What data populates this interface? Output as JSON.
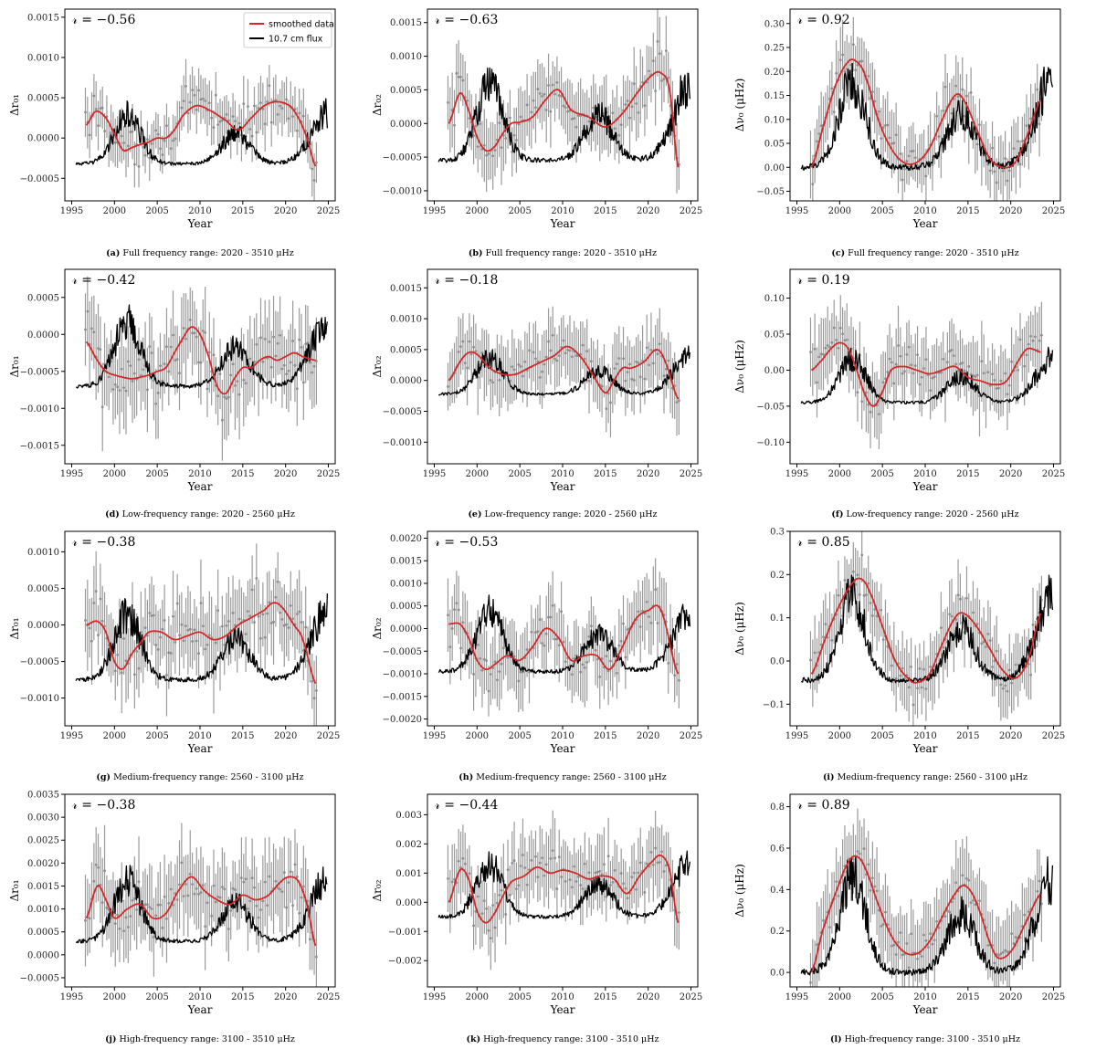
{
  "figure": {
    "xlabel": "Year",
    "x_ticks": [
      1995,
      2000,
      2005,
      2010,
      2015,
      2020,
      2025
    ],
    "xlim": [
      1994.2,
      2025.8
    ],
    "colors": {
      "smoothed": "#d62728",
      "flux": "#000000",
      "errorbars": "#9a9a9a",
      "points": "#8c8c8c"
    },
    "legend": {
      "smoothed": "smoothed data",
      "flux": "10.7 cm flux",
      "placement": "top-right of panel a"
    }
  },
  "chart_data": [
    {
      "id": "a",
      "type": "line",
      "tag": "(a)",
      "caption": "Full frequency range: 2020 - 3510 μHz",
      "r_text": "𝓇 = −0.56",
      "ylabel": "Δr₀₁",
      "ylim": [
        -0.00078,
        0.0016
      ],
      "y_ticks": [
        -0.0005,
        0.0,
        0.0005,
        0.001,
        0.0015
      ],
      "y_tick_labels": [
        "−0.0005",
        "0.0000",
        "0.0005",
        "0.0010",
        "0.0015"
      ],
      "smooth_x": [
        1996.7,
        1997.8,
        1999,
        2000,
        2001,
        2002,
        2003,
        2004,
        2005,
        2006,
        2007,
        2008,
        2009.5,
        2011,
        2013,
        2014.5,
        2016,
        2017.5,
        2019,
        2020.5,
        2021.5,
        2022.5,
        2023.5
      ],
      "smooth_y": [
        0.00016,
        0.00033,
        0.00025,
        5e-05,
        -0.00015,
        -0.00012,
        -8e-05,
        -5e-05,
        0.0,
        0.0,
        0.0001,
        0.00028,
        0.0004,
        0.00035,
        0.00022,
        0.0001,
        0.00025,
        0.0004,
        0.00045,
        0.0004,
        0.00025,
        0.0,
        -0.00035
      ],
      "flux_low": -0.00032,
      "flux_amp": 0.0006,
      "err": 0.00028,
      "scatter": 0.00018
    },
    {
      "id": "b",
      "type": "line",
      "tag": "(b)",
      "caption": "Full frequency range: 2020 - 3510 μHz",
      "r_text": "𝓇 = −0.63",
      "ylabel": "Δr₀₂",
      "ylim": [
        -0.00115,
        0.0017
      ],
      "y_ticks": [
        -0.001,
        -0.0005,
        0.0,
        0.0005,
        0.001,
        0.0015
      ],
      "y_tick_labels": [
        "−0.0010",
        "−0.0005",
        "0.0000",
        "0.0005",
        "0.0010",
        "0.0015"
      ],
      "smooth_x": [
        1996.7,
        1998,
        1999,
        2000,
        2001,
        2002,
        2003,
        2004,
        2005,
        2006.5,
        2008,
        2009.5,
        2011,
        2013,
        2015,
        2017,
        2019,
        2020.5,
        2021.5,
        2022.5,
        2023.5
      ],
      "smooth_y": [
        0.0,
        0.00045,
        0.0002,
        -0.0002,
        -0.0004,
        -0.00035,
        -0.00015,
        0.0,
        2e-05,
        0.0001,
        0.00035,
        0.0005,
        0.0002,
        0.0001,
        -5e-05,
        0.00015,
        0.0005,
        0.00072,
        0.00075,
        0.0005,
        -0.00065
      ],
      "flux_low": -0.00055,
      "flux_amp": 0.0011,
      "err": 0.00045,
      "scatter": 0.00025
    },
    {
      "id": "c",
      "type": "line",
      "tag": "(c)",
      "caption": "Full frequency range: 2020 - 3510 μHz",
      "r_text": "𝓇 = 0.92",
      "ylabel": "Δν₀ (μHz)",
      "ylim": [
        -0.07,
        0.33
      ],
      "y_ticks": [
        -0.05,
        0.0,
        0.05,
        0.1,
        0.15,
        0.2,
        0.25,
        0.3
      ],
      "y_tick_labels": [
        "−0.05",
        "0.00",
        "0.05",
        "0.10",
        "0.15",
        "0.20",
        "0.25",
        "0.30"
      ],
      "smooth_x": [
        1996.7,
        1998,
        1999.5,
        2001,
        2002,
        2003,
        2004.5,
        2006,
        2007.5,
        2009,
        2010.5,
        2012,
        2013.5,
        2014.5,
        2016,
        2017.5,
        2019,
        2020.5,
        2022,
        2023.5
      ],
      "smooth_y": [
        0.0,
        0.08,
        0.17,
        0.22,
        0.22,
        0.19,
        0.1,
        0.04,
        0.01,
        0.01,
        0.04,
        0.1,
        0.15,
        0.14,
        0.08,
        0.02,
        0.0,
        0.01,
        0.07,
        0.14
      ],
      "flux_low": 0.0,
      "flux_amp": 0.18,
      "err": 0.06,
      "scatter": 0.03
    },
    {
      "id": "d",
      "type": "line",
      "tag": "(d)",
      "caption": "Low-frequency range: 2020 - 2560 μHz",
      "r_text": "𝓇 = −0.42",
      "ylabel": "Δr₀₁",
      "ylim": [
        -0.00175,
        0.00088
      ],
      "y_ticks": [
        -0.0015,
        -0.001,
        -0.0005,
        0.0,
        0.0005
      ],
      "y_tick_labels": [
        "−0.0015",
        "−0.0010",
        "−0.0005",
        "0.0000",
        "0.0005"
      ],
      "smooth_x": [
        1996.7,
        1998,
        1999,
        2000,
        2001,
        2002,
        2003,
        2004,
        2005,
        2006,
        2007,
        2008,
        2009,
        2010,
        2011,
        2012,
        2013,
        2014,
        2015,
        2016,
        2017,
        2018,
        2019,
        2020,
        2021,
        2022,
        2023.5
      ],
      "smooth_y": [
        -0.0001,
        -0.00035,
        -0.0005,
        -0.00055,
        -0.00058,
        -0.0006,
        -0.00058,
        -0.00055,
        -0.0005,
        -0.00045,
        -0.00025,
        -5e-05,
        0.0001,
        0.0,
        -0.0003,
        -0.0007,
        -0.0008,
        -0.0006,
        -0.00045,
        -0.00045,
        -0.00035,
        -0.0003,
        -0.00035,
        -0.0003,
        -0.00025,
        -0.0003,
        -0.00035
      ],
      "flux_low": -0.0007,
      "flux_amp": 0.00085,
      "err": 0.0005,
      "scatter": 0.0003
    },
    {
      "id": "e",
      "type": "line",
      "tag": "(e)",
      "caption": "Low-frequency range: 2020 - 2560 μHz",
      "r_text": "𝓇 = −0.18",
      "ylabel": "Δr₀₂",
      "ylim": [
        -0.00135,
        0.0018
      ],
      "y_ticks": [
        -0.001,
        -0.0005,
        0.0,
        0.0005,
        0.001,
        0.0015
      ],
      "y_tick_labels": [
        "−0.0010",
        "−0.0005",
        "0.0000",
        "0.0005",
        "0.0010",
        "0.0015"
      ],
      "smooth_x": [
        1996.7,
        1998,
        1999,
        2000,
        2001.5,
        2003,
        2004.5,
        2006,
        2007.5,
        2009,
        2010.5,
        2012,
        2013.5,
        2015,
        2016,
        2017,
        2018,
        2019.5,
        2021,
        2022,
        2023.5
      ],
      "smooth_y": [
        0.0,
        0.0003,
        0.00045,
        0.00042,
        0.0002,
        0.0001,
        0.0001,
        0.0002,
        0.0003,
        0.0004,
        0.00055,
        0.0004,
        0.0001,
        -0.0002,
        0.0,
        0.0002,
        0.0002,
        0.0003,
        0.0005,
        0.0003,
        -0.0003
      ],
      "flux_low": -0.00022,
      "flux_amp": 0.0006,
      "err": 0.0005,
      "scatter": 0.0002
    },
    {
      "id": "f",
      "type": "line",
      "tag": "(f)",
      "caption": "Low-frequency range: 2020 - 2560 μHz",
      "r_text": "𝓇 = 0.19",
      "ylabel": "Δν₀ (μHz)",
      "ylim": [
        -0.13,
        0.14
      ],
      "y_ticks": [
        -0.1,
        -0.05,
        0.0,
        0.05,
        0.1
      ],
      "y_tick_labels": [
        "−0.10",
        "−0.05",
        "0.00",
        "0.05",
        "0.10"
      ],
      "smooth_x": [
        1996.7,
        1998,
        1999,
        2000,
        2001,
        2002,
        2003,
        2004,
        2005,
        2006,
        2007.5,
        2009,
        2010.5,
        2012,
        2013.5,
        2015,
        2016.5,
        2018,
        2019.5,
        2021,
        2022,
        2023.5
      ],
      "smooth_y": [
        0.0,
        0.015,
        0.03,
        0.038,
        0.03,
        0.0,
        -0.035,
        -0.05,
        -0.03,
        0.0,
        0.005,
        0.0,
        -0.005,
        0.0,
        0.005,
        -0.01,
        -0.015,
        -0.02,
        -0.015,
        0.015,
        0.03,
        0.025
      ],
      "flux_low": -0.045,
      "flux_amp": 0.06,
      "err": 0.045,
      "scatter": 0.02
    },
    {
      "id": "g",
      "type": "line",
      "tag": "(g)",
      "caption": "Medium-frequency range: 2560 - 3100 μHz",
      "r_text": "𝓇 = −0.38",
      "ylabel": "Δr₀₁",
      "ylim": [
        -0.00138,
        0.00128
      ],
      "y_ticks": [
        -0.001,
        -0.0005,
        0.0,
        0.0005,
        0.001
      ],
      "y_tick_labels": [
        "−0.0010",
        "−0.0005",
        "0.0000",
        "0.0005",
        "0.0010"
      ],
      "smooth_x": [
        1996.7,
        1998,
        1999,
        2000,
        2001,
        2002,
        2003,
        2004,
        2005.5,
        2007,
        2008.5,
        2010,
        2011.5,
        2013,
        2014.5,
        2016,
        2017.5,
        2018.5,
        2019.5,
        2021,
        2022,
        2023.5
      ],
      "smooth_y": [
        0.0,
        5e-05,
        -0.0001,
        -0.0005,
        -0.0006,
        -0.0004,
        -0.00025,
        -0.0001,
        -0.0001,
        -0.0002,
        -0.00015,
        -0.0001,
        -0.0002,
        -0.00015,
        0.0,
        0.0001,
        0.0002,
        0.0003,
        0.00025,
        0.0,
        -0.0002,
        -0.0008
      ],
      "flux_low": -0.00075,
      "flux_amp": 0.0009,
      "err": 0.0005,
      "scatter": 0.0003
    },
    {
      "id": "h",
      "type": "line",
      "tag": "(h)",
      "caption": "Medium-frequency range: 2560 - 3100 μHz",
      "r_text": "𝓇 = −0.53",
      "ylabel": "Δr₀₂",
      "ylim": [
        -0.00215,
        0.00215
      ],
      "y_ticks": [
        -0.002,
        -0.0015,
        -0.001,
        -0.0005,
        0.0,
        0.0005,
        0.001,
        0.0015,
        0.002
      ],
      "y_tick_labels": [
        "−0.0020",
        "−0.0015",
        "−0.0010",
        "−0.0005",
        "0.0000",
        "0.0005",
        "0.0010",
        "0.0015",
        "0.0020"
      ],
      "smooth_x": [
        1996.7,
        1998,
        1999,
        2000,
        2001,
        2002,
        2003.5,
        2005,
        2006.5,
        2008,
        2009.5,
        2011,
        2012.5,
        2014,
        2015.5,
        2017,
        2018.5,
        2020,
        2021.5,
        2023.5
      ],
      "smooth_y": [
        0.0001,
        0.0001,
        -0.0002,
        -0.0007,
        -0.0009,
        -0.0008,
        -0.0006,
        -0.0007,
        -0.0004,
        0.0,
        -0.0002,
        -0.0007,
        -0.0006,
        -0.0006,
        -0.0009,
        -0.0004,
        0.0002,
        0.0004,
        0.0004,
        -0.001
      ],
      "flux_low": -0.00095,
      "flux_amp": 0.0013,
      "err": 0.0007,
      "scatter": 0.00035
    },
    {
      "id": "i",
      "type": "line",
      "tag": "(i)",
      "caption": "Medium-frequency range: 2560 - 3100 μHz",
      "r_text": "𝓇 = 0.85",
      "ylabel": "Δν₀ (μHz)",
      "ylim": [
        -0.15,
        0.3
      ],
      "y_ticks": [
        -0.1,
        0.0,
        0.1,
        0.2,
        0.3
      ],
      "y_tick_labels": [
        "−0.1",
        "0.0",
        "0.1",
        "0.2",
        "0.3"
      ],
      "smooth_x": [
        1996.7,
        1998.5,
        2000,
        2001.5,
        2002.5,
        2003.5,
        2005,
        2006.5,
        2008,
        2009,
        2010.5,
        2012,
        2013.5,
        2014.5,
        2016,
        2017.5,
        2019,
        2020.5,
        2022,
        2023.5
      ],
      "smooth_y": [
        -0.03,
        0.06,
        0.13,
        0.18,
        0.19,
        0.16,
        0.08,
        0.0,
        -0.04,
        -0.05,
        -0.03,
        0.04,
        0.1,
        0.11,
        0.08,
        0.03,
        -0.02,
        -0.04,
        0.0,
        0.11
      ],
      "flux_low": -0.045,
      "flux_amp": 0.19,
      "err": 0.07,
      "scatter": 0.035
    },
    {
      "id": "j",
      "type": "line",
      "tag": "(j)",
      "caption": "High-frequency range: 3100 - 3510 μHz",
      "r_text": "𝓇 = −0.38",
      "ylabel": "Δr₀₁",
      "ylim": [
        -0.0007,
        0.0035
      ],
      "y_ticks": [
        -0.0005,
        0.0,
        0.0005,
        0.001,
        0.0015,
        0.002,
        0.0025,
        0.003,
        0.0035
      ],
      "y_tick_labels": [
        "−0.0005",
        "0.0000",
        "0.0005",
        "0.0010",
        "0.0015",
        "0.0020",
        "0.0025",
        "0.0030",
        "0.0035"
      ],
      "smooth_x": [
        1996.7,
        1998,
        1999,
        2000,
        2001.5,
        2003,
        2004.5,
        2006,
        2007.5,
        2009,
        2010.5,
        2012,
        2013.5,
        2015,
        2016.5,
        2018,
        2019.5,
        2020.5,
        2021.5,
        2022.5,
        2023.5
      ],
      "smooth_y": [
        0.0008,
        0.0015,
        0.0012,
        0.0008,
        0.001,
        0.0011,
        0.0008,
        0.0009,
        0.0014,
        0.0017,
        0.0014,
        0.0012,
        0.0011,
        0.0013,
        0.0012,
        0.0013,
        0.0016,
        0.0017,
        0.0016,
        0.0011,
        0.0002
      ],
      "flux_low": 0.0003,
      "flux_amp": 0.0013,
      "err": 0.0008,
      "scatter": 0.0004
    },
    {
      "id": "k",
      "type": "line",
      "tag": "(k)",
      "caption": "High-frequency range: 3100 - 3510 μHz",
      "r_text": "𝓇 = −0.44",
      "ylabel": "Δr₀₂",
      "ylim": [
        -0.0029,
        0.0037
      ],
      "y_ticks": [
        -0.002,
        -0.001,
        0.0,
        0.001,
        0.002,
        0.003
      ],
      "y_tick_labels": [
        "−0.002",
        "−0.001",
        "0.000",
        "0.001",
        "0.002",
        "0.003"
      ],
      "smooth_x": [
        1996.7,
        1998,
        1999,
        2000,
        2001,
        2002,
        2003,
        2004,
        2005.5,
        2007,
        2008.5,
        2010,
        2011.5,
        2013,
        2014.5,
        2016,
        2017.5,
        2019,
        2020.5,
        2021.5,
        2022.5,
        2023.5
      ],
      "smooth_y": [
        0.0,
        0.0011,
        0.0008,
        -0.0003,
        -0.0007,
        -0.0004,
        0.0002,
        0.0007,
        0.0009,
        0.0012,
        0.001,
        0.0011,
        0.001,
        0.0008,
        0.0009,
        0.0008,
        0.0003,
        0.0009,
        0.0014,
        0.0016,
        0.0011,
        -0.0007
      ],
      "flux_low": -0.0005,
      "flux_amp": 0.0018,
      "err": 0.0011,
      "scatter": 0.0005
    },
    {
      "id": "l",
      "type": "line",
      "tag": "(l)",
      "caption": "High-frequency range: 3100 - 3510 μHz",
      "r_text": "𝓇 = 0.89",
      "ylabel": "Δν₀ (μHz)",
      "ylim": [
        -0.07,
        0.86
      ],
      "y_ticks": [
        0.0,
        0.2,
        0.4,
        0.6,
        0.8
      ],
      "y_tick_labels": [
        "0.0",
        "0.2",
        "0.4",
        "0.6",
        "0.8"
      ],
      "smooth_x": [
        1996.7,
        1998,
        1999.5,
        2001,
        2002,
        2003,
        2004.5,
        2006,
        2007.5,
        2009,
        2010.5,
        2012,
        2013.5,
        2014.5,
        2015.5,
        2016.5,
        2017.5,
        2018.5,
        2020,
        2021.5,
        2023.5
      ],
      "smooth_y": [
        0.0,
        0.2,
        0.38,
        0.53,
        0.56,
        0.5,
        0.33,
        0.18,
        0.1,
        0.09,
        0.15,
        0.27,
        0.38,
        0.42,
        0.38,
        0.28,
        0.15,
        0.07,
        0.1,
        0.22,
        0.38
      ],
      "flux_low": 0.0,
      "flux_amp": 0.45,
      "err": 0.17,
      "scatter": 0.06
    }
  ]
}
